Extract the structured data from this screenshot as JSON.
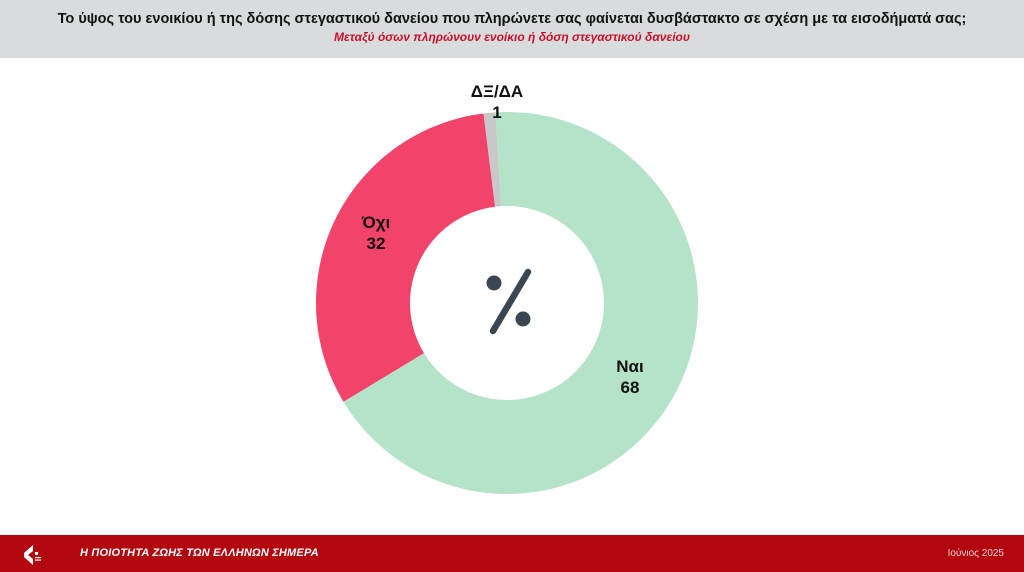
{
  "header": {
    "title": "Το ύψος του ενοικίου ή της δόσης στεγαστικού δανείου που πληρώνετε σας φαίνεται δυσβάστακτο σε σχέση με τα εισοδήματά σας;",
    "subtitle": "Μεταξύ όσων πληρώνουν ενοίκιο ή δόση στεγαστικού δανείου"
  },
  "chart_data": {
    "type": "pie",
    "donut": true,
    "center_symbol": "%",
    "categories": [
      "Ναι",
      "Όχι",
      "ΔΞ/ΔΑ"
    ],
    "values": [
      68,
      32,
      1
    ],
    "colors": [
      "#b5e3c8",
      "#f2436a",
      "#c8c8c8"
    ],
    "title": "",
    "legend": "none"
  },
  "footer": {
    "survey_title": "Η ΠΟΙΟΤΗΤΑ ΖΩΗΣ ΤΩΝ ΕΛΛΗΝΩΝ ΣΗΜΕΡΑ",
    "date": "Ιούνιος 2025",
    "logo_icon": "brand-logo-icon",
    "colors": {
      "bar": "#b2070f"
    }
  }
}
